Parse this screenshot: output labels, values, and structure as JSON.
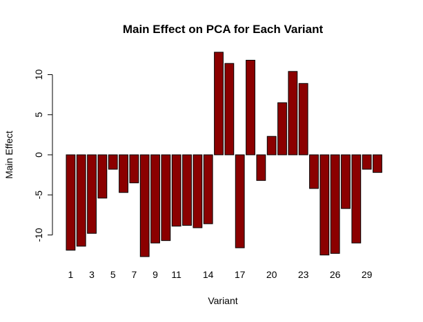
{
  "chart_data": {
    "type": "bar",
    "title": "Main Effect on PCA for Each Variant",
    "xlabel": "Variant",
    "ylabel": "Main Effect",
    "bar_color": "#8b0000",
    "bar_border_color": "#000000",
    "ylim": [
      -13,
      13
    ],
    "yticks": [
      -10,
      -5,
      0,
      5,
      10
    ],
    "categories": [
      "1",
      "2",
      "3",
      "4",
      "5",
      "6",
      "7",
      "8",
      "9",
      "10",
      "11",
      "12",
      "13",
      "14",
      "15",
      "16",
      "17",
      "18",
      "19",
      "20",
      "21",
      "22",
      "23",
      "24",
      "25",
      "26",
      "27",
      "28",
      "29",
      "30"
    ],
    "x_tick_labels": [
      "1",
      "3",
      "5",
      "7",
      "9",
      "11",
      "14",
      "17",
      "20",
      "23",
      "26",
      "29"
    ],
    "values": [
      -11.9,
      -11.4,
      -9.8,
      -5.4,
      -1.8,
      -4.7,
      -3.5,
      -12.7,
      -11.0,
      -10.7,
      -8.9,
      -8.8,
      -9.1,
      -8.6,
      12.8,
      11.4,
      -11.6,
      11.8,
      -3.2,
      2.3,
      6.5,
      10.4,
      8.9,
      -4.2,
      -12.5,
      -12.3,
      -6.7,
      -11.0,
      -1.8,
      -2.2
    ]
  }
}
